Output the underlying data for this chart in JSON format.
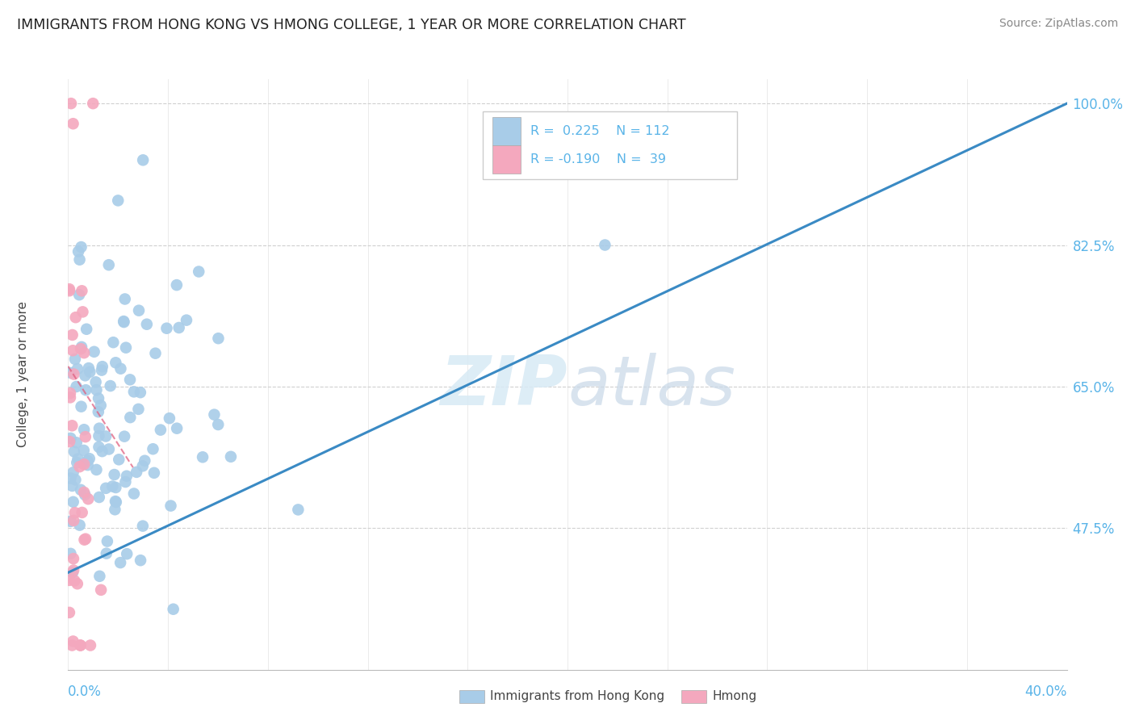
{
  "title": "IMMIGRANTS FROM HONG KONG VS HMONG COLLEGE, 1 YEAR OR MORE CORRELATION CHART",
  "source_text": "Source: ZipAtlas.com",
  "ylabel": "College, 1 year or more",
  "color_hk": "#a8cce8",
  "color_hmong": "#f4a8be",
  "trendline_hk_color": "#3a8ac4",
  "trendline_hmong_color": "#e06080",
  "trendline_hmong_dash": "#c0c0c0",
  "watermark_zip": "ZIP",
  "watermark_atlas": "atlas",
  "background_color": "#ffffff",
  "grid_color": "#d0d0d0",
  "x_min": 0.0,
  "x_max": 0.4,
  "y_min": 0.3,
  "y_max": 1.03,
  "y_ticks": [
    1.0,
    0.825,
    0.65,
    0.475
  ],
  "y_tick_labels": [
    "100.0%",
    "82.5%",
    "65.0%",
    "47.5%"
  ],
  "tick_color": "#5ab4e8",
  "legend_r1": "R =  0.225",
  "legend_n1": "N = 112",
  "legend_r2": "R = -0.190",
  "legend_n2": "N =  39"
}
